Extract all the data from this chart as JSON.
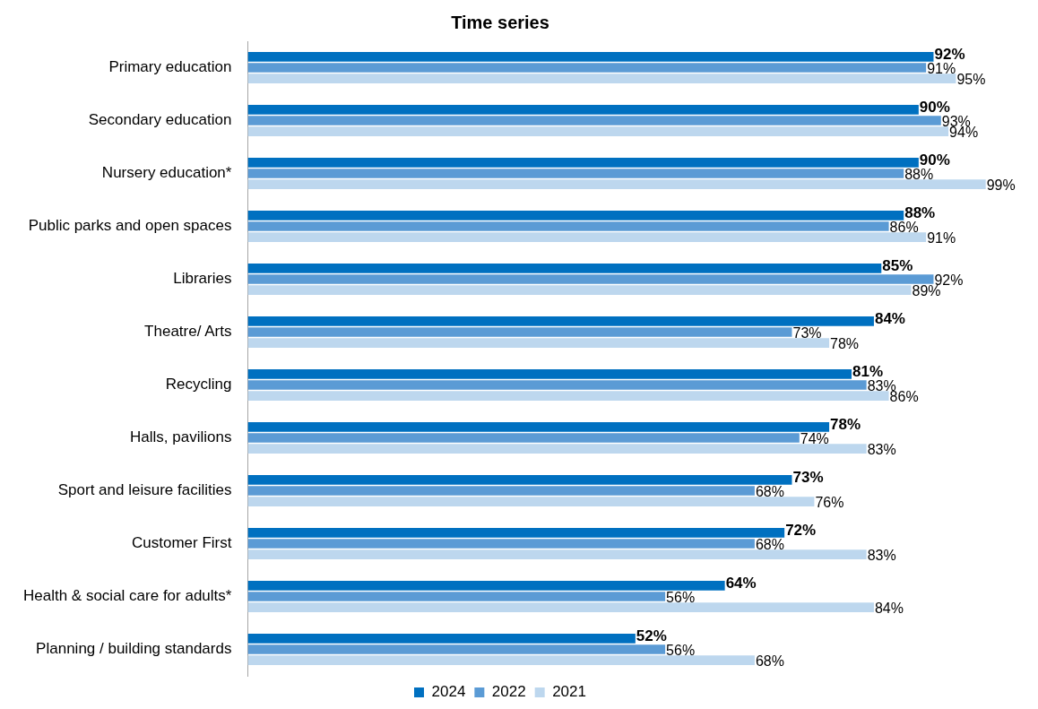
{
  "chart_data": {
    "type": "bar",
    "orientation": "horizontal",
    "title": "Time series",
    "categories": [
      "Primary education",
      "Secondary education",
      "Nursery education*",
      "Public parks and open spaces",
      "Libraries",
      "Theatre/ Arts",
      "Recycling",
      "Halls, pavilions",
      "Sport and leisure facilities",
      "Customer First",
      "Health & social care for adults*",
      "Planning / building standards"
    ],
    "series": [
      {
        "name": "2024",
        "color": "#0070c0",
        "values": [
          92,
          90,
          90,
          88,
          85,
          84,
          81,
          78,
          73,
          72,
          64,
          52
        ],
        "value_labels": [
          "92%",
          "90%",
          "90%",
          "88%",
          "85%",
          "84%",
          "81%",
          "78%",
          "73%",
          "72%",
          "64%",
          "52%"
        ]
      },
      {
        "name": "2022",
        "color": "#5b9bd5",
        "values": [
          91,
          93,
          88,
          86,
          92,
          73,
          83,
          74,
          68,
          68,
          56,
          56
        ],
        "value_labels": [
          "91%",
          "93%",
          "88%",
          "86%",
          "92%",
          "73%",
          "83%",
          "74%",
          "68%",
          "68%",
          "56%",
          "56%"
        ]
      },
      {
        "name": "2021",
        "color": "#bdd7ee",
        "values": [
          95,
          94,
          99,
          91,
          89,
          78,
          86,
          83,
          76,
          83,
          84,
          68
        ],
        "value_labels": [
          "95%",
          "94%",
          "99%",
          "91%",
          "89%",
          "78%",
          "86%",
          "83%",
          "76%",
          "83%",
          "84%",
          "68%"
        ]
      }
    ],
    "legend": "bottom"
  }
}
